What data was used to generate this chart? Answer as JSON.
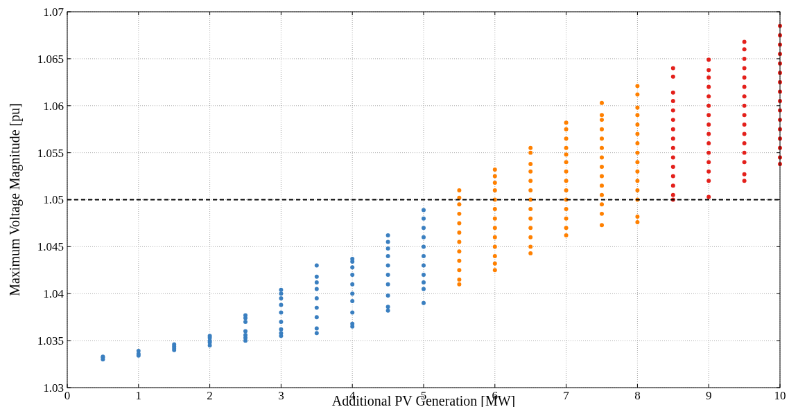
{
  "chart_data": {
    "type": "scatter",
    "xlabel": "Additional PV Generation [MW]",
    "ylabel": "Maximum Voltage Magnitude [pu]",
    "xlim": [
      0,
      10
    ],
    "xticks": [
      0,
      1,
      2,
      3,
      4,
      5,
      6,
      7,
      8,
      9,
      10
    ],
    "ylim": [
      1.03,
      1.07
    ],
    "yticks": [
      1.03,
      1.035,
      1.04,
      1.045,
      1.05,
      1.055,
      1.06,
      1.065,
      1.07
    ],
    "grid": true,
    "marker": "circle",
    "ref_lines": [
      {
        "axis": "y",
        "value": 1.05,
        "color": "#000000",
        "line_style": "dashed"
      }
    ],
    "series": [
      {
        "color": "#3a7fc0",
        "x": [
          0.5,
          0.5,
          0.5,
          1,
          1,
          1,
          1.5,
          1.5,
          1.5,
          1.5,
          2,
          2,
          2,
          2,
          2,
          2.5,
          2.5,
          2.5,
          2.5,
          2.5,
          2.5,
          2.5,
          3,
          3,
          3,
          3,
          3,
          3,
          3,
          3,
          3,
          3.5,
          3.5,
          3.5,
          3.5,
          3.5,
          3.5,
          3.5,
          3.5,
          3.5,
          4,
          4,
          4,
          4,
          4,
          4,
          4,
          4,
          4,
          4,
          4.5,
          4.5,
          4.5,
          4.5,
          4.5,
          4.5,
          4.5,
          4.5,
          4.5,
          4.5,
          5,
          5,
          5,
          5,
          5,
          5,
          5,
          5,
          5,
          5,
          5
        ],
        "values": [
          1.033,
          1.0332,
          1.0333,
          1.0334,
          1.0336,
          1.0339,
          1.034,
          1.0342,
          1.0344,
          1.0346,
          1.0345,
          1.0348,
          1.035,
          1.0353,
          1.0355,
          1.035,
          1.0353,
          1.0356,
          1.036,
          1.037,
          1.0374,
          1.0377,
          1.0355,
          1.0358,
          1.0362,
          1.037,
          1.038,
          1.0388,
          1.0395,
          1.04,
          1.0404,
          1.0358,
          1.0363,
          1.0375,
          1.0385,
          1.0395,
          1.0405,
          1.0412,
          1.0418,
          1.043,
          1.0365,
          1.0368,
          1.038,
          1.0392,
          1.04,
          1.041,
          1.042,
          1.0428,
          1.0434,
          1.0437,
          1.0382,
          1.0386,
          1.0398,
          1.041,
          1.042,
          1.043,
          1.044,
          1.0448,
          1.0455,
          1.0462,
          1.039,
          1.0405,
          1.0412,
          1.042,
          1.043,
          1.044,
          1.045,
          1.046,
          1.047,
          1.048,
          1.0489
        ]
      },
      {
        "color": "#ff8000",
        "x": [
          5.5,
          5.5,
          5.5,
          5.5,
          5.5,
          5.5,
          5.5,
          5.5,
          5.5,
          5.5,
          5.5,
          5.5,
          6,
          6,
          6,
          6,
          6,
          6,
          6,
          6,
          6,
          6,
          6,
          6,
          6,
          6.5,
          6.5,
          6.5,
          6.5,
          6.5,
          6.5,
          6.5,
          6.5,
          6.5,
          6.5,
          6.5,
          6.5,
          6.5,
          7,
          7,
          7,
          7,
          7,
          7,
          7,
          7,
          7,
          7,
          7,
          7,
          7,
          7,
          7.5,
          7.5,
          7.5,
          7.5,
          7.5,
          7.5,
          7.5,
          7.5,
          7.5,
          7.5,
          7.5,
          7.5,
          7.5,
          7.5,
          8,
          8,
          8,
          8,
          8,
          8,
          8,
          8,
          8,
          8,
          8,
          8,
          8,
          8,
          8
        ],
        "values": [
          1.041,
          1.0415,
          1.0425,
          1.0435,
          1.0445,
          1.0455,
          1.0465,
          1.0475,
          1.0485,
          1.0495,
          1.0502,
          1.051,
          1.0425,
          1.0432,
          1.044,
          1.045,
          1.046,
          1.047,
          1.048,
          1.049,
          1.05,
          1.051,
          1.0518,
          1.0525,
          1.0532,
          1.0443,
          1.045,
          1.046,
          1.047,
          1.048,
          1.049,
          1.05,
          1.051,
          1.052,
          1.053,
          1.0538,
          1.055,
          1.0555,
          1.0462,
          1.047,
          1.048,
          1.049,
          1.05,
          1.051,
          1.052,
          1.053,
          1.054,
          1.0548,
          1.0555,
          1.0565,
          1.0575,
          1.0582,
          1.0473,
          1.0485,
          1.0495,
          1.0505,
          1.0515,
          1.0525,
          1.0535,
          1.0545,
          1.0555,
          1.0565,
          1.0575,
          1.0585,
          1.059,
          1.0603,
          1.0476,
          1.0482,
          1.05,
          1.051,
          1.052,
          1.053,
          1.054,
          1.055,
          1.056,
          1.057,
          1.058,
          1.059,
          1.0598,
          1.0612,
          1.0621
        ]
      },
      {
        "color": "#e3201b",
        "x": [
          8.5,
          8.5,
          8.5,
          8.5,
          8.5,
          8.5,
          8.5,
          8.5,
          8.5,
          8.5,
          8.5,
          8.5,
          8.5,
          8.5,
          8.5,
          9,
          9,
          9,
          9,
          9,
          9,
          9,
          9,
          9,
          9,
          9,
          9,
          9,
          9,
          9,
          9.5,
          9.5,
          9.5,
          9.5,
          9.5,
          9.5,
          9.5,
          9.5,
          9.5,
          9.5,
          9.5,
          9.5,
          9.5,
          9.5,
          9.5,
          9.5,
          10,
          10,
          10,
          10,
          10,
          10,
          10,
          10,
          10,
          10,
          10,
          10,
          10,
          10,
          10,
          10
        ],
        "values": [
          1.05,
          1.0505,
          1.0515,
          1.0525,
          1.0535,
          1.0545,
          1.0555,
          1.0565,
          1.0575,
          1.0585,
          1.0595,
          1.0605,
          1.0614,
          1.0631,
          1.064,
          1.0503,
          1.052,
          1.053,
          1.054,
          1.055,
          1.056,
          1.057,
          1.058,
          1.059,
          1.06,
          1.061,
          1.062,
          1.063,
          1.0638,
          1.0649,
          1.052,
          1.0527,
          1.054,
          1.055,
          1.056,
          1.057,
          1.058,
          1.059,
          1.06,
          1.061,
          1.062,
          1.063,
          1.064,
          1.065,
          1.066,
          1.0668,
          1.0538,
          1.0545,
          1.0555,
          1.0565,
          1.0575,
          1.0585,
          1.0595,
          1.0605,
          1.0615,
          1.0625,
          1.0635,
          1.0645,
          1.0655,
          1.0665,
          1.0675,
          1.0685
        ]
      }
    ]
  }
}
